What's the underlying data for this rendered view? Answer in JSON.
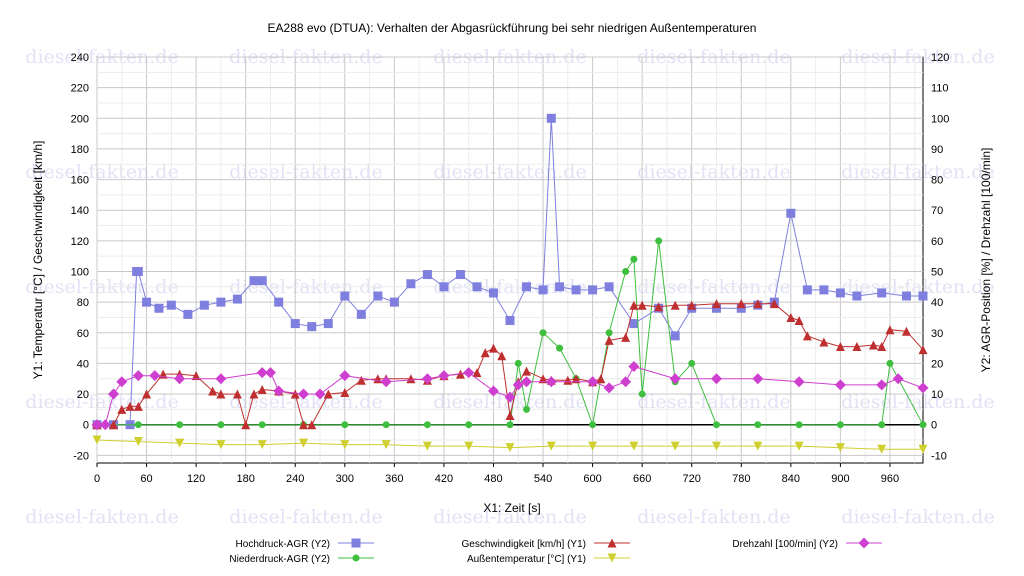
{
  "watermark": "diesel-fakten.de",
  "chart_data": {
    "type": "line",
    "title": "EA288 evo (DTUA): Verhalten der Abgasrückführung bei sehr niedrigen Außentemperaturen",
    "xlabel": "X1: Zeit [s]",
    "ylabel_left": "Y1: Temperatur [°C] / Geschwindigkeit [km/h]",
    "ylabel_right": "Y2: AGR-Position [%] / Drehzahl [100/min]",
    "xlim": [
      0,
      1000
    ],
    "ylim_left": [
      -25,
      240
    ],
    "ylim_right": [
      -12.5,
      120
    ],
    "x_ticks": [
      0,
      60,
      120,
      180,
      240,
      300,
      360,
      420,
      480,
      540,
      600,
      660,
      720,
      780,
      840,
      900,
      960
    ],
    "y_left_ticks": [
      -20,
      0,
      20,
      40,
      60,
      80,
      100,
      120,
      140,
      160,
      180,
      200,
      220,
      240
    ],
    "y_right_ticks": [
      -10,
      0,
      10,
      20,
      30,
      40,
      50,
      60,
      70,
      80,
      90,
      100,
      110,
      120
    ],
    "grid": true,
    "legend_position": "bottom",
    "series": [
      {
        "name": "Hochdruck-AGR (Y2)",
        "axis": "right",
        "color": "#7f7fdf",
        "marker": "square",
        "x": [
          0,
          20,
          40,
          48,
          50,
          60,
          75,
          90,
          110,
          130,
          150,
          170,
          190,
          200,
          220,
          240,
          260,
          280,
          300,
          320,
          340,
          360,
          380,
          400,
          420,
          440,
          460,
          480,
          500,
          520,
          540,
          550,
          560,
          580,
          600,
          620,
          650,
          680,
          700,
          720,
          750,
          780,
          800,
          820,
          840,
          860,
          880,
          900,
          920,
          950,
          980,
          1000
        ],
        "y": [
          0,
          0,
          0,
          50,
          50,
          40,
          38,
          39,
          36,
          39,
          40,
          41,
          47,
          47,
          40,
          33,
          32,
          33,
          42,
          36,
          42,
          40,
          46,
          49,
          45,
          49,
          45,
          43,
          34,
          45,
          44,
          100,
          45,
          44,
          44,
          45,
          33,
          38,
          29,
          38,
          38,
          38,
          39,
          40,
          69,
          44,
          44,
          43,
          42,
          43,
          42,
          42
        ]
      },
      {
        "name": "Niederdruck-AGR (Y2)",
        "axis": "right",
        "color": "#3fbf3f",
        "marker": "circle",
        "x": [
          0,
          50,
          100,
          150,
          200,
          250,
          300,
          350,
          400,
          450,
          500,
          510,
          520,
          540,
          560,
          580,
          600,
          620,
          640,
          650,
          660,
          680,
          700,
          720,
          750,
          800,
          850,
          900,
          950,
          960,
          1000
        ],
        "y": [
          0,
          0,
          0,
          0,
          0,
          0,
          0,
          0,
          0,
          0,
          0,
          20,
          5,
          30,
          25,
          15,
          0,
          30,
          50,
          54,
          10,
          60,
          14,
          20,
          0,
          0,
          0,
          0,
          0,
          20,
          0
        ]
      },
      {
        "name": "Geschwindigkeit [km/h] (Y1)",
        "axis": "left",
        "color": "#bf2f2f",
        "marker": "triangle",
        "x": [
          0,
          20,
          30,
          40,
          50,
          60,
          80,
          100,
          120,
          140,
          150,
          170,
          180,
          190,
          200,
          220,
          240,
          250,
          260,
          280,
          300,
          320,
          340,
          350,
          380,
          400,
          420,
          440,
          460,
          470,
          480,
          490,
          500,
          510,
          520,
          540,
          550,
          570,
          580,
          600,
          610,
          620,
          640,
          650,
          660,
          680,
          700,
          720,
          750,
          780,
          800,
          820,
          840,
          850,
          860,
          880,
          900,
          920,
          940,
          950,
          960,
          980,
          1000
        ],
        "y": [
          0,
          0,
          10,
          12,
          12,
          20,
          33,
          33,
          32,
          22,
          20,
          20,
          0,
          20,
          23,
          22,
          20,
          0,
          0,
          20,
          21,
          29,
          30,
          30,
          30,
          29,
          32,
          33,
          34,
          47,
          50,
          45,
          6,
          28,
          35,
          30,
          29,
          29,
          30,
          28,
          30,
          55,
          57,
          78,
          78,
          77,
          78,
          78,
          79,
          79,
          79,
          79,
          70,
          68,
          58,
          54,
          51,
          51,
          52,
          51,
          62,
          61,
          49
        ]
      },
      {
        "name": "Außentemperatur [°C] (Y1)",
        "axis": "left",
        "color": "#cfcf2f",
        "marker": "triangle-down",
        "x": [
          0,
          50,
          100,
          150,
          200,
          250,
          300,
          350,
          400,
          450,
          500,
          550,
          600,
          650,
          700,
          750,
          800,
          850,
          900,
          950,
          1000
        ],
        "y": [
          -10,
          -11,
          -12,
          -13,
          -13,
          -12,
          -13,
          -13,
          -14,
          -14,
          -15,
          -14,
          -14,
          -14,
          -14,
          -14,
          -14,
          -14,
          -15,
          -16,
          -16
        ]
      },
      {
        "name": "Drehzahl [100/min] (Y2)",
        "axis": "right",
        "color": "#cf3fcf",
        "marker": "diamond",
        "x": [
          0,
          10,
          20,
          30,
          50,
          70,
          100,
          150,
          200,
          210,
          220,
          250,
          270,
          300,
          350,
          400,
          420,
          450,
          480,
          500,
          510,
          520,
          550,
          600,
          620,
          640,
          650,
          700,
          750,
          800,
          850,
          900,
          950,
          970,
          1000
        ],
        "y": [
          0,
          0,
          10,
          14,
          16,
          16,
          15,
          15,
          17,
          17,
          11,
          10,
          10,
          16,
          14,
          15,
          16,
          17,
          11,
          9,
          13,
          14,
          14,
          14,
          12,
          14,
          19,
          15,
          15,
          15,
          14,
          13,
          13,
          15,
          12
        ]
      }
    ]
  }
}
